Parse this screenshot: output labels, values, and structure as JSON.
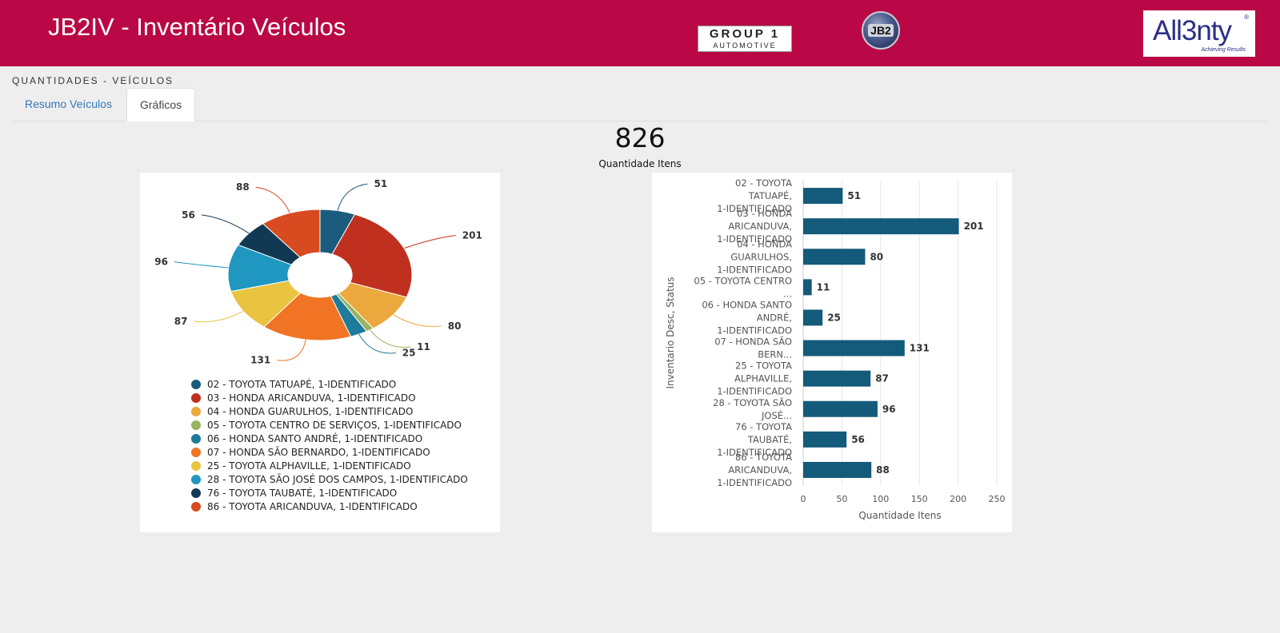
{
  "header": {
    "title": "JB2IV - Inventário Veículos",
    "color": "#b90845",
    "logo_group1_line1": "GROUP 1",
    "logo_group1_line2": "AUTOMOTIVE",
    "logo_jb2": "JB2",
    "logo_allenty": "All3nty",
    "logo_allenty_sub": "Achieving Results"
  },
  "section_title": "QUANTIDADES - VEÍCULOS",
  "tabs": [
    {
      "label": "Resumo Veículos",
      "active": false
    },
    {
      "label": "Gráficos",
      "active": true
    }
  ],
  "kpi": {
    "value": "826",
    "label": "Quantidade Itens"
  },
  "chart_data": [
    {
      "type": "pie",
      "subtype": "donut",
      "categories": [
        "02 - TOYOTA TATUAPÉ, 1-IDENTIFICADO",
        "03 - HONDA ARICANDUVA, 1-IDENTIFICADO",
        "04 - HONDA GUARULHOS, 1-IDENTIFICADO",
        "05 - TOYOTA CENTRO DE SERVIÇOS, 1-IDENTIFICADO",
        "06 - HONDA SANTO ANDRÉ, 1-IDENTIFICADO",
        "07 - HONDA SÃO BERNARDO, 1-IDENTIFICADO",
        "25 - TOYOTA ALPHAVILLE, 1-IDENTIFICADO",
        "28 - TOYOTA SÃO JOSÉ DOS CAMPOS, 1-IDENTIFICADO",
        "76 - TOYOTA TAUBATÉ, 1-IDENTIFICADO",
        "86 - TOYOTA ARICANDUVA, 1-IDENTIFICADO"
      ],
      "values": [
        51,
        201,
        80,
        11,
        25,
        131,
        87,
        96,
        56,
        88
      ],
      "colors": [
        "#1a5b7e",
        "#c0301f",
        "#eba83c",
        "#98b462",
        "#1d7c99",
        "#f07424",
        "#e8c440",
        "#1f97c0",
        "#123954",
        "#d84a1f"
      ],
      "legend": "bottom"
    },
    {
      "type": "bar",
      "orientation": "horizontal",
      "categories": [
        "02 - TOYOTA TATUAPÉ, 1-IDENTIFICADO",
        "03 - HONDA ARICANDUVA, 1-IDENTIFICADO",
        "04 - HONDA GUARULHOS, 1-IDENTIFICADO",
        "05 - TOYOTA CENTRO ...",
        "06 - HONDA SANTO ANDRÉ, 1-IDENTIFICADO",
        "07 - HONDA SÃO BERN...",
        "25 - TOYOTA ALPHAVILLE, 1-IDENTIFICADO",
        "28 - TOYOTA SÃO JOSÉ...",
        "76 - TOYOTA TAUBATÉ, 1-IDENTIFICADO",
        "86 - TOYOTA ARICANDUVA, 1-IDENTIFICADO"
      ],
      "values": [
        51,
        201,
        80,
        11,
        25,
        131,
        87,
        96,
        56,
        88
      ],
      "xlabel": "Quantidade Itens",
      "ylabel": "Inventario Desc, Status",
      "xlim": [
        0,
        250
      ],
      "xticks": [
        0,
        50,
        100,
        150,
        200,
        250
      ],
      "bar_color": "#145a7a",
      "grid": true
    }
  ]
}
